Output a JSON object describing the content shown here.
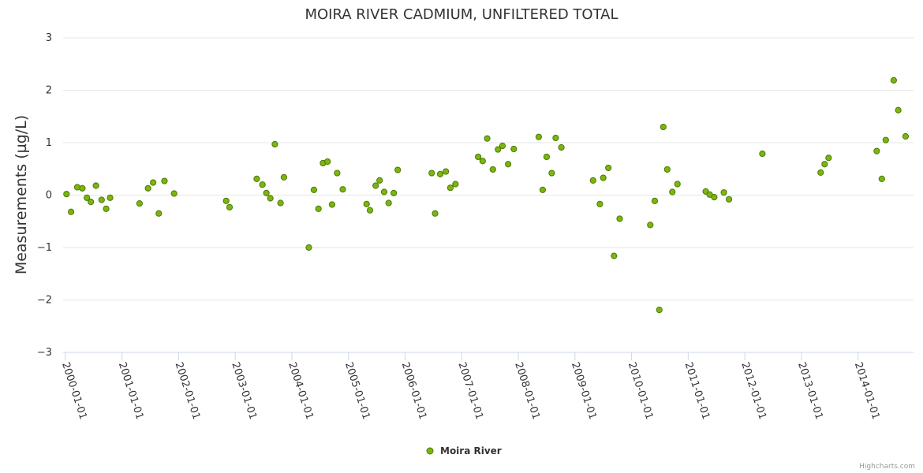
{
  "chart_data": {
    "type": "scatter",
    "title": "MOIRA RIVER CADMIUM, UNFILTERED TOTAL",
    "ylabel": "Measurements (µg/L)",
    "xlabel": "",
    "ylim": [
      -3,
      3
    ],
    "yticks": [
      "3",
      "2",
      "1",
      "0",
      "−1",
      "−2",
      "−3"
    ],
    "ytick_values": [
      3,
      2,
      1,
      0,
      -1,
      -2,
      -3
    ],
    "xticks": [
      "2000-01-01",
      "2001-01-01",
      "2002-01-01",
      "2003-01-01",
      "2004-01-01",
      "2005-01-01",
      "2006-01-01",
      "2007-01-01",
      "2008-01-01",
      "2009-01-01",
      "2010-01-01",
      "2011-01-01",
      "2012-01-01",
      "2013-01-01",
      "2014-01-01"
    ],
    "xtick_values": [
      2000,
      2001,
      2002,
      2003,
      2004,
      2005,
      2006,
      2007,
      2008,
      2009,
      2010,
      2011,
      2012,
      2013,
      2014
    ],
    "xlim": [
      1999.96,
      2014.98
    ],
    "series": [
      {
        "name": "Moira River",
        "color": "#7cb511",
        "stroke": "#4d7a00",
        "points": [
          [
            2000.02,
            0.02
          ],
          [
            2000.1,
            -0.32
          ],
          [
            2000.21,
            0.15
          ],
          [
            2000.3,
            0.13
          ],
          [
            2000.38,
            -0.05
          ],
          [
            2000.45,
            -0.13
          ],
          [
            2000.54,
            0.18
          ],
          [
            2000.64,
            -0.09
          ],
          [
            2000.72,
            -0.26
          ],
          [
            2000.79,
            -0.05
          ],
          [
            2001.31,
            -0.16
          ],
          [
            2001.46,
            0.13
          ],
          [
            2001.55,
            0.24
          ],
          [
            2001.65,
            -0.35
          ],
          [
            2001.75,
            0.27
          ],
          [
            2001.92,
            0.03
          ],
          [
            2002.84,
            -0.11
          ],
          [
            2002.9,
            -0.23
          ],
          [
            2003.38,
            0.31
          ],
          [
            2003.48,
            0.2
          ],
          [
            2003.55,
            0.04
          ],
          [
            2003.62,
            -0.06
          ],
          [
            2003.7,
            0.97
          ],
          [
            2003.8,
            -0.15
          ],
          [
            2003.86,
            0.34
          ],
          [
            2004.3,
            -1.0
          ],
          [
            2004.39,
            0.1
          ],
          [
            2004.47,
            -0.26
          ],
          [
            2004.55,
            0.61
          ],
          [
            2004.63,
            0.64
          ],
          [
            2004.71,
            -0.18
          ],
          [
            2004.8,
            0.42
          ],
          [
            2004.9,
            0.11
          ],
          [
            2005.32,
            -0.17
          ],
          [
            2005.38,
            -0.29
          ],
          [
            2005.48,
            0.18
          ],
          [
            2005.55,
            0.28
          ],
          [
            2005.63,
            0.06
          ],
          [
            2005.71,
            -0.15
          ],
          [
            2005.8,
            0.04
          ],
          [
            2005.87,
            0.48
          ],
          [
            2006.47,
            0.42
          ],
          [
            2006.53,
            -0.35
          ],
          [
            2006.62,
            0.4
          ],
          [
            2006.72,
            0.45
          ],
          [
            2006.8,
            0.14
          ],
          [
            2006.89,
            0.21
          ],
          [
            2007.29,
            0.73
          ],
          [
            2007.37,
            0.65
          ],
          [
            2007.45,
            1.08
          ],
          [
            2007.55,
            0.49
          ],
          [
            2007.64,
            0.87
          ],
          [
            2007.72,
            0.94
          ],
          [
            2007.82,
            0.59
          ],
          [
            2007.92,
            0.88
          ],
          [
            2008.36,
            1.11
          ],
          [
            2008.43,
            0.1
          ],
          [
            2008.5,
            0.73
          ],
          [
            2008.59,
            0.42
          ],
          [
            2008.66,
            1.09
          ],
          [
            2008.76,
            0.91
          ],
          [
            2009.32,
            0.28
          ],
          [
            2009.44,
            -0.17
          ],
          [
            2009.5,
            0.33
          ],
          [
            2009.59,
            0.52
          ],
          [
            2009.69,
            -1.16
          ],
          [
            2009.79,
            -0.45
          ],
          [
            2010.33,
            -0.57
          ],
          [
            2010.41,
            -0.11
          ],
          [
            2010.49,
            -2.19
          ],
          [
            2010.56,
            1.3
          ],
          [
            2010.63,
            0.49
          ],
          [
            2010.72,
            0.06
          ],
          [
            2010.81,
            0.21
          ],
          [
            2011.31,
            0.07
          ],
          [
            2011.38,
            0.01
          ],
          [
            2011.46,
            -0.04
          ],
          [
            2011.63,
            0.05
          ],
          [
            2011.72,
            -0.08
          ],
          [
            2012.31,
            0.79
          ],
          [
            2013.34,
            0.43
          ],
          [
            2013.41,
            0.59
          ],
          [
            2013.48,
            0.71
          ],
          [
            2014.33,
            0.84
          ],
          [
            2014.42,
            0.31
          ],
          [
            2014.49,
            1.05
          ],
          [
            2014.63,
            2.19
          ],
          [
            2014.71,
            1.62
          ],
          [
            2014.84,
            1.12
          ]
        ]
      }
    ],
    "legend": {
      "position": "bottom-center",
      "label": "Moira River"
    },
    "credits": "Highcharts.com"
  }
}
